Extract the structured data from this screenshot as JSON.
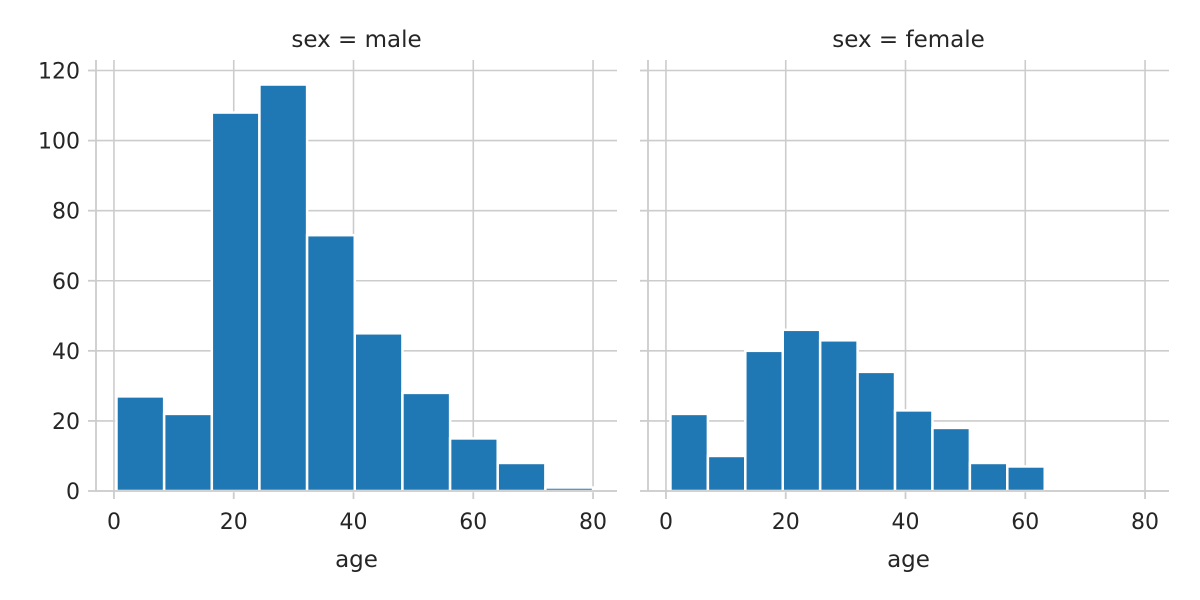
{
  "chart_data": [
    {
      "type": "bar",
      "title": "sex = male",
      "xlabel": "age",
      "ylabel": "",
      "xlim": [
        -3,
        84
      ],
      "ylim": [
        0,
        123
      ],
      "xticks": [
        0,
        20,
        40,
        60,
        80
      ],
      "yticks": [
        0,
        20,
        40,
        60,
        80,
        100,
        120
      ],
      "bin_edges": [
        0.42,
        8.38,
        16.34,
        24.29,
        32.25,
        40.21,
        48.17,
        56.13,
        64.08,
        72.04,
        80.0
      ],
      "values": [
        27,
        22,
        108,
        116,
        73,
        45,
        28,
        15,
        8,
        1
      ],
      "grid": true,
      "color": "#1f77b4"
    },
    {
      "type": "bar",
      "title": "sex = female",
      "xlabel": "age",
      "ylabel": "",
      "xlim": [
        -3,
        84
      ],
      "ylim": [
        0,
        123
      ],
      "xticks": [
        0,
        20,
        40,
        60,
        80
      ],
      "yticks": [
        0,
        20,
        40,
        60,
        80,
        100,
        120
      ],
      "bin_edges": [
        0.75,
        7.0,
        13.25,
        19.5,
        25.75,
        32.0,
        38.25,
        44.5,
        50.75,
        57.0,
        63.25
      ],
      "values": [
        22,
        10,
        40,
        46,
        43,
        34,
        23,
        18,
        8,
        7
      ],
      "grid": true,
      "color": "#1f77b4"
    }
  ]
}
